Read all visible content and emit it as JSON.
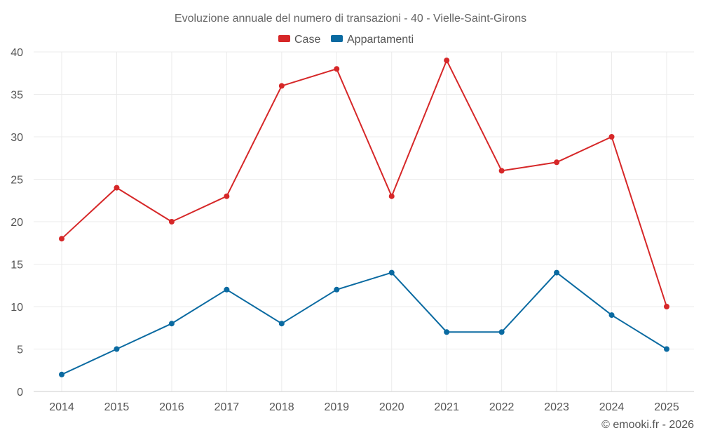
{
  "chart_data": {
    "type": "line",
    "title": "Evoluzione annuale del numero di transazioni - 40 - Vielle-Saint-Girons",
    "categories": [
      "2014",
      "2015",
      "2016",
      "2017",
      "2018",
      "2019",
      "2020",
      "2021",
      "2022",
      "2023",
      "2024",
      "2025"
    ],
    "series": [
      {
        "name": "Case",
        "color": "#d62728",
        "values": [
          18,
          24,
          20,
          23,
          36,
          38,
          23,
          39,
          26,
          27,
          30,
          10
        ]
      },
      {
        "name": "Appartamenti",
        "color": "#0a6aa1",
        "values": [
          2,
          5,
          8,
          12,
          8,
          12,
          14,
          7,
          7,
          14,
          9,
          5
        ]
      }
    ],
    "ylim": [
      0,
      40
    ],
    "yticks": [
      0,
      5,
      10,
      15,
      20,
      25,
      30,
      35,
      40
    ],
    "xlabel": "",
    "ylabel": "",
    "grid": true,
    "legend": "top-center"
  },
  "footer": {
    "credit": "© emooki.fr - 2026"
  }
}
